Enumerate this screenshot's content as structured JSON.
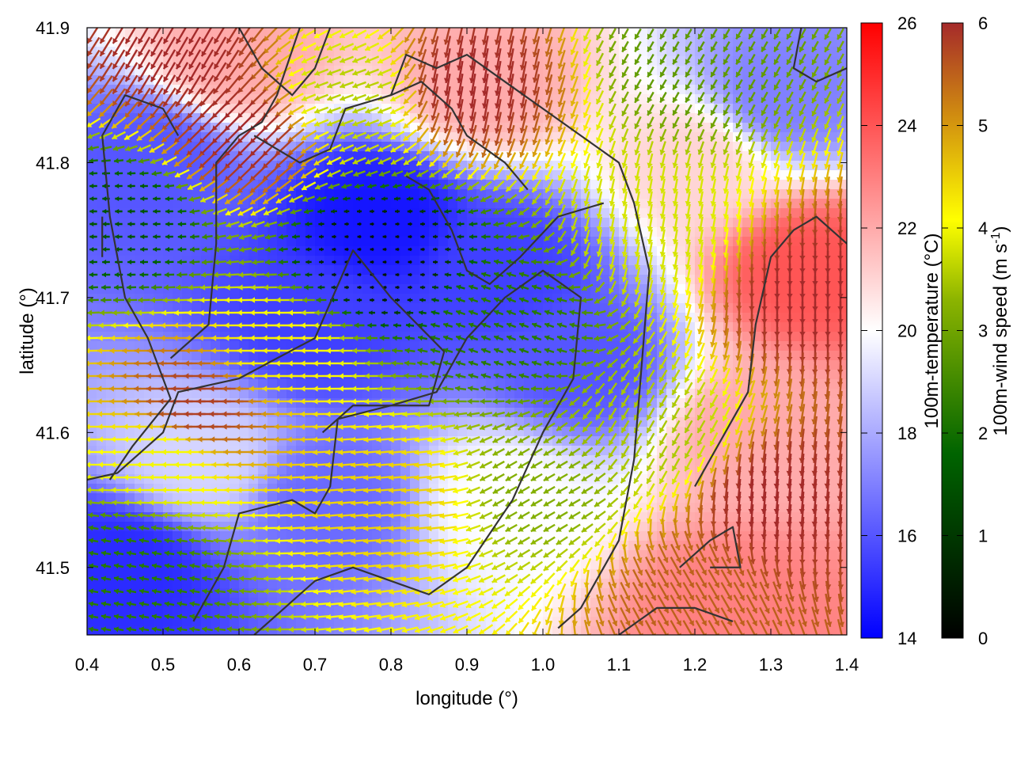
{
  "chart_data": {
    "type": "heatmap",
    "subtype": "temperature field with colored wind-vector arrows and terrain contours",
    "xlabel": "longitude (°)",
    "ylabel": "latitude (°)",
    "xlim": [
      0.4,
      1.4
    ],
    "ylim": [
      41.45,
      41.9
    ],
    "x_ticks": [
      "0.4",
      "0.5",
      "0.6",
      "0.7",
      "0.8",
      "0.9",
      "1.0",
      "1.1",
      "1.2",
      "1.3",
      "1.4"
    ],
    "y_ticks": [
      "41.5",
      "41.6",
      "41.7",
      "41.8",
      "41.9"
    ],
    "temperature_colorbar": {
      "label": "100m-temperature (°C)",
      "range": [
        14,
        26
      ],
      "ticks": [
        "14",
        "16",
        "18",
        "20",
        "22",
        "24",
        "26"
      ],
      "colors": [
        "#0000ff",
        "#ffffff",
        "#ff0000"
      ]
    },
    "wind_colorbar": {
      "label": "100m-wind speed (m s-1)",
      "label_prefix": "100m-wind speed (m s",
      "label_exponent": "-1",
      "label_suffix": ")",
      "range": [
        0,
        6
      ],
      "ticks": [
        "0",
        "1",
        "2",
        "3",
        "4",
        "5",
        "6"
      ],
      "colors": [
        "#000000",
        "#006400",
        "#7fa800",
        "#ffff00",
        "#d48c00",
        "#a52a2a"
      ]
    },
    "temperature_regions": [
      {
        "lon": 0.45,
        "lat": 41.5,
        "temp": 15
      },
      {
        "lon": 0.48,
        "lat": 41.8,
        "temp": 16
      },
      {
        "lon": 0.78,
        "lat": 41.76,
        "temp": 14.5
      },
      {
        "lon": 0.7,
        "lat": 41.68,
        "temp": 15.5
      },
      {
        "lon": 0.95,
        "lat": 41.72,
        "temp": 15.5
      },
      {
        "lon": 1.05,
        "lat": 41.65,
        "temp": 16
      },
      {
        "lon": 0.72,
        "lat": 41.55,
        "temp": 16.5
      },
      {
        "lon": 0.6,
        "lat": 41.88,
        "temp": 22
      },
      {
        "lon": 0.92,
        "lat": 41.86,
        "temp": 22
      },
      {
        "lon": 1.35,
        "lat": 41.72,
        "temp": 24
      },
      {
        "lon": 1.28,
        "lat": 41.6,
        "temp": 22
      },
      {
        "lon": 1.25,
        "lat": 41.47,
        "temp": 23
      },
      {
        "lon": 1.2,
        "lat": 41.8,
        "temp": 21
      },
      {
        "lon": 1.32,
        "lat": 41.85,
        "temp": 17
      },
      {
        "lon": 0.95,
        "lat": 41.55,
        "temp": 20
      },
      {
        "lon": 0.55,
        "lat": 41.58,
        "temp": 19
      }
    ],
    "wind_regions": [
      {
        "lon": 0.78,
        "lat": 41.73,
        "speed": 0.4,
        "dir_deg": 180
      },
      {
        "lon": 0.45,
        "lat": 41.76,
        "speed": 1.5,
        "dir_deg": 180
      },
      {
        "lon": 0.45,
        "lat": 41.5,
        "speed": 2.2,
        "dir_deg": 190
      },
      {
        "lon": 0.55,
        "lat": 41.62,
        "speed": 5.8,
        "dir_deg": 180
      },
      {
        "lon": 0.5,
        "lat": 41.58,
        "speed": 4.0,
        "dir_deg": 180
      },
      {
        "lon": 0.65,
        "lat": 41.66,
        "speed": 4.2,
        "dir_deg": 180
      },
      {
        "lon": 0.6,
        "lat": 41.82,
        "speed": 6,
        "dir_deg": 135
      },
      {
        "lon": 0.52,
        "lat": 41.88,
        "speed": 6,
        "dir_deg": 120
      },
      {
        "lon": 0.9,
        "lat": 41.86,
        "speed": 6,
        "dir_deg": 100
      },
      {
        "lon": 1.35,
        "lat": 41.7,
        "speed": 6,
        "dir_deg": 90
      },
      {
        "lon": 1.3,
        "lat": 41.55,
        "speed": 6,
        "dir_deg": 95
      },
      {
        "lon": 1.2,
        "lat": 41.48,
        "speed": 5.5,
        "dir_deg": 60
      },
      {
        "lon": 1.0,
        "lat": 41.56,
        "speed": 3.2,
        "dir_deg": 150
      },
      {
        "lon": 0.95,
        "lat": 41.68,
        "speed": 2.2,
        "dir_deg": 200
      },
      {
        "lon": 1.15,
        "lat": 41.75,
        "speed": 3.8,
        "dir_deg": 100
      },
      {
        "lon": 1.15,
        "lat": 41.6,
        "speed": 3.5,
        "dir_deg": 120
      },
      {
        "lon": 0.8,
        "lat": 41.55,
        "speed": 4.5,
        "dir_deg": 175
      },
      {
        "lon": 0.75,
        "lat": 41.85,
        "speed": 3.6,
        "dir_deg": 160
      },
      {
        "lon": 1.2,
        "lat": 41.88,
        "speed": 2.8,
        "dir_deg": 120
      }
    ],
    "contours": [
      [
        [
          0.4,
          41.565
        ],
        [
          0.44,
          41.57
        ],
        [
          0.5,
          41.6
        ],
        [
          0.52,
          41.63
        ],
        [
          0.6,
          41.64
        ],
        [
          0.7,
          41.67
        ],
        [
          0.75,
          41.735
        ],
        [
          0.8,
          41.7
        ],
        [
          0.87,
          41.66
        ],
        [
          0.85,
          41.62
        ],
        [
          0.8,
          41.62
        ],
        [
          0.73,
          41.61
        ],
        [
          0.72,
          41.56
        ],
        [
          0.7,
          41.54
        ],
        [
          0.67,
          41.55
        ],
        [
          0.6,
          41.54
        ],
        [
          0.58,
          41.5
        ],
        [
          0.56,
          41.48
        ],
        [
          0.54,
          41.46
        ]
      ],
      [
        [
          0.43,
          41.565
        ],
        [
          0.46,
          41.59
        ],
        [
          0.51,
          41.625
        ],
        [
          0.48,
          41.67
        ],
        [
          0.45,
          41.7
        ],
        [
          0.43,
          41.76
        ],
        [
          0.42,
          41.82
        ],
        [
          0.45,
          41.85
        ],
        [
          0.5,
          41.84
        ],
        [
          0.52,
          41.82
        ]
      ],
      [
        [
          0.51,
          41.655
        ],
        [
          0.56,
          41.68
        ],
        [
          0.57,
          41.74
        ],
        [
          0.57,
          41.8
        ],
        [
          0.6,
          41.82
        ],
        [
          0.63,
          41.83
        ],
        [
          0.65,
          41.85
        ],
        [
          0.68,
          41.9
        ]
      ],
      [
        [
          0.6,
          41.9
        ],
        [
          0.63,
          41.87
        ],
        [
          0.67,
          41.85
        ],
        [
          0.7,
          41.87
        ],
        [
          0.72,
          41.9
        ]
      ],
      [
        [
          0.62,
          41.82
        ],
        [
          0.68,
          41.8
        ],
        [
          0.72,
          41.81
        ],
        [
          0.74,
          41.84
        ],
        [
          0.8,
          41.85
        ],
        [
          0.84,
          41.86
        ],
        [
          0.88,
          41.84
        ],
        [
          0.9,
          41.82
        ],
        [
          0.95,
          41.8
        ],
        [
          0.98,
          41.78
        ]
      ],
      [
        [
          0.8,
          41.85
        ],
        [
          0.82,
          41.88
        ],
        [
          0.86,
          41.87
        ],
        [
          0.9,
          41.88
        ],
        [
          0.95,
          41.86
        ],
        [
          1.0,
          41.84
        ],
        [
          1.05,
          41.82
        ],
        [
          1.1,
          41.8
        ],
        [
          1.12,
          41.77
        ],
        [
          1.14,
          41.72
        ],
        [
          1.13,
          41.65
        ],
        [
          1.12,
          41.58
        ],
        [
          1.1,
          41.52
        ],
        [
          1.05,
          41.47
        ],
        [
          1.02,
          41.455
        ]
      ],
      [
        [
          0.71,
          41.6
        ],
        [
          0.75,
          41.62
        ],
        [
          0.8,
          41.62
        ],
        [
          0.86,
          41.63
        ],
        [
          0.9,
          41.67
        ],
        [
          0.95,
          41.7
        ],
        [
          1.0,
          41.72
        ],
        [
          1.05,
          41.7
        ],
        [
          1.04,
          41.64
        ],
        [
          1.0,
          41.6
        ],
        [
          0.96,
          41.55
        ],
        [
          0.9,
          41.5
        ],
        [
          0.85,
          41.48
        ],
        [
          0.8,
          41.49
        ],
        [
          0.75,
          41.5
        ],
        [
          0.7,
          41.49
        ],
        [
          0.66,
          41.47
        ],
        [
          0.62,
          41.45
        ]
      ],
      [
        [
          1.1,
          41.45
        ],
        [
          1.15,
          41.47
        ],
        [
          1.2,
          41.47
        ],
        [
          1.25,
          41.46
        ]
      ],
      [
        [
          1.18,
          41.5
        ],
        [
          1.22,
          41.52
        ],
        [
          1.25,
          41.53
        ],
        [
          1.26,
          41.5
        ],
        [
          1.22,
          41.5
        ]
      ],
      [
        [
          1.2,
          41.56
        ],
        [
          1.24,
          41.6
        ],
        [
          1.27,
          41.63
        ],
        [
          1.28,
          41.68
        ],
        [
          1.3,
          41.73
        ],
        [
          1.33,
          41.75
        ],
        [
          1.36,
          41.76
        ],
        [
          1.38,
          41.75
        ],
        [
          1.4,
          41.74
        ]
      ],
      [
        [
          1.34,
          41.9
        ],
        [
          1.33,
          41.87
        ],
        [
          1.36,
          41.86
        ],
        [
          1.4,
          41.87
        ]
      ],
      [
        [
          0.42,
          41.73
        ],
        [
          0.42,
          41.76
        ]
      ],
      [
        [
          0.82,
          41.79
        ],
        [
          0.85,
          41.78
        ],
        [
          0.88,
          41.75
        ],
        [
          0.9,
          41.72
        ],
        [
          0.93,
          41.71
        ],
        [
          0.97,
          41.73
        ],
        [
          1.02,
          41.76
        ],
        [
          1.08,
          41.77
        ]
      ]
    ]
  }
}
